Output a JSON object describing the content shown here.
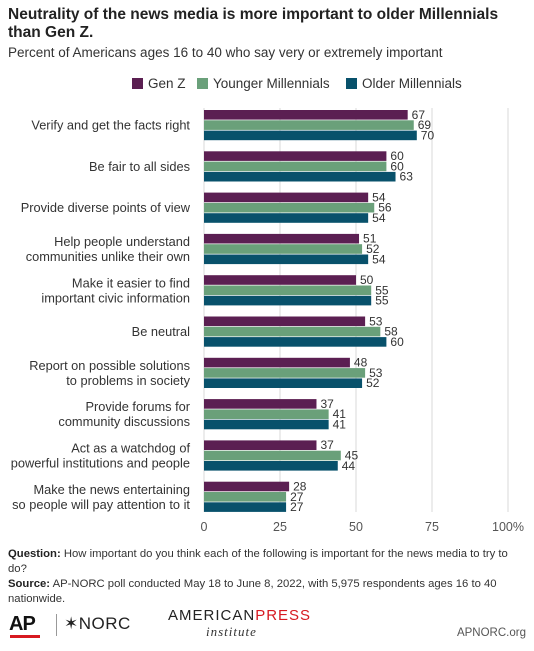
{
  "header": {
    "title": "Neutrality of the news media is more important to older Millennials than Gen Z.",
    "subtitle": "Percent of Americans ages 16 to 40 who say very or extremely important"
  },
  "colors": {
    "gen_z": "#5b1f52",
    "younger_millennials": "#6aa07a",
    "older_millennials": "#08516b",
    "gridline": "#d9d9d9",
    "ap_red": "#d71920"
  },
  "chart_data": {
    "type": "bar",
    "orientation": "horizontal",
    "categories": [
      [
        "Verify and get the facts right"
      ],
      [
        "Be fair to all sides"
      ],
      [
        "Provide diverse points of view"
      ],
      [
        "Help people understand",
        "communities unlike their own"
      ],
      [
        "Make it easier to find",
        "important civic information"
      ],
      [
        "Be neutral"
      ],
      [
        "Report on possible solutions",
        "to problems in society"
      ],
      [
        "Provide forums for",
        "community discussions"
      ],
      [
        "Act as a watchdog of",
        "powerful institutions and people"
      ],
      [
        "Make the news entertaining",
        "so people will pay attention to it"
      ]
    ],
    "series": [
      {
        "name": "Gen Z",
        "values": [
          67,
          60,
          54,
          51,
          50,
          53,
          48,
          37,
          37,
          28
        ]
      },
      {
        "name": "Younger Millennials",
        "values": [
          69,
          60,
          56,
          52,
          55,
          58,
          53,
          41,
          45,
          27
        ]
      },
      {
        "name": "Older Millennials",
        "values": [
          70,
          63,
          54,
          54,
          55,
          60,
          52,
          41,
          44,
          27
        ]
      }
    ],
    "xlim": [
      0,
      100
    ],
    "x_ticks": [
      "0",
      "25",
      "50",
      "75",
      "100%"
    ],
    "x_tick_values": [
      0,
      25,
      50,
      75,
      100
    ],
    "grid": true,
    "legend": "top"
  },
  "footnote": {
    "question_label": "Question:",
    "question_text": "How important do you think each of the following is important for the news media to try to do?",
    "source_label": "Source:",
    "source_text": "AP-NORC poll conducted May 18 to June 8, 2022, with 5,975 respondents ages 16 to 40 nationwide."
  },
  "footer": {
    "ap_logo": "AP",
    "norc_logo": "✶NORC",
    "api_logo_line1_a": "AMERICAN",
    "api_logo_line1_b": "PRESS",
    "api_logo_line2": "institute",
    "site": "APNORC.org"
  }
}
